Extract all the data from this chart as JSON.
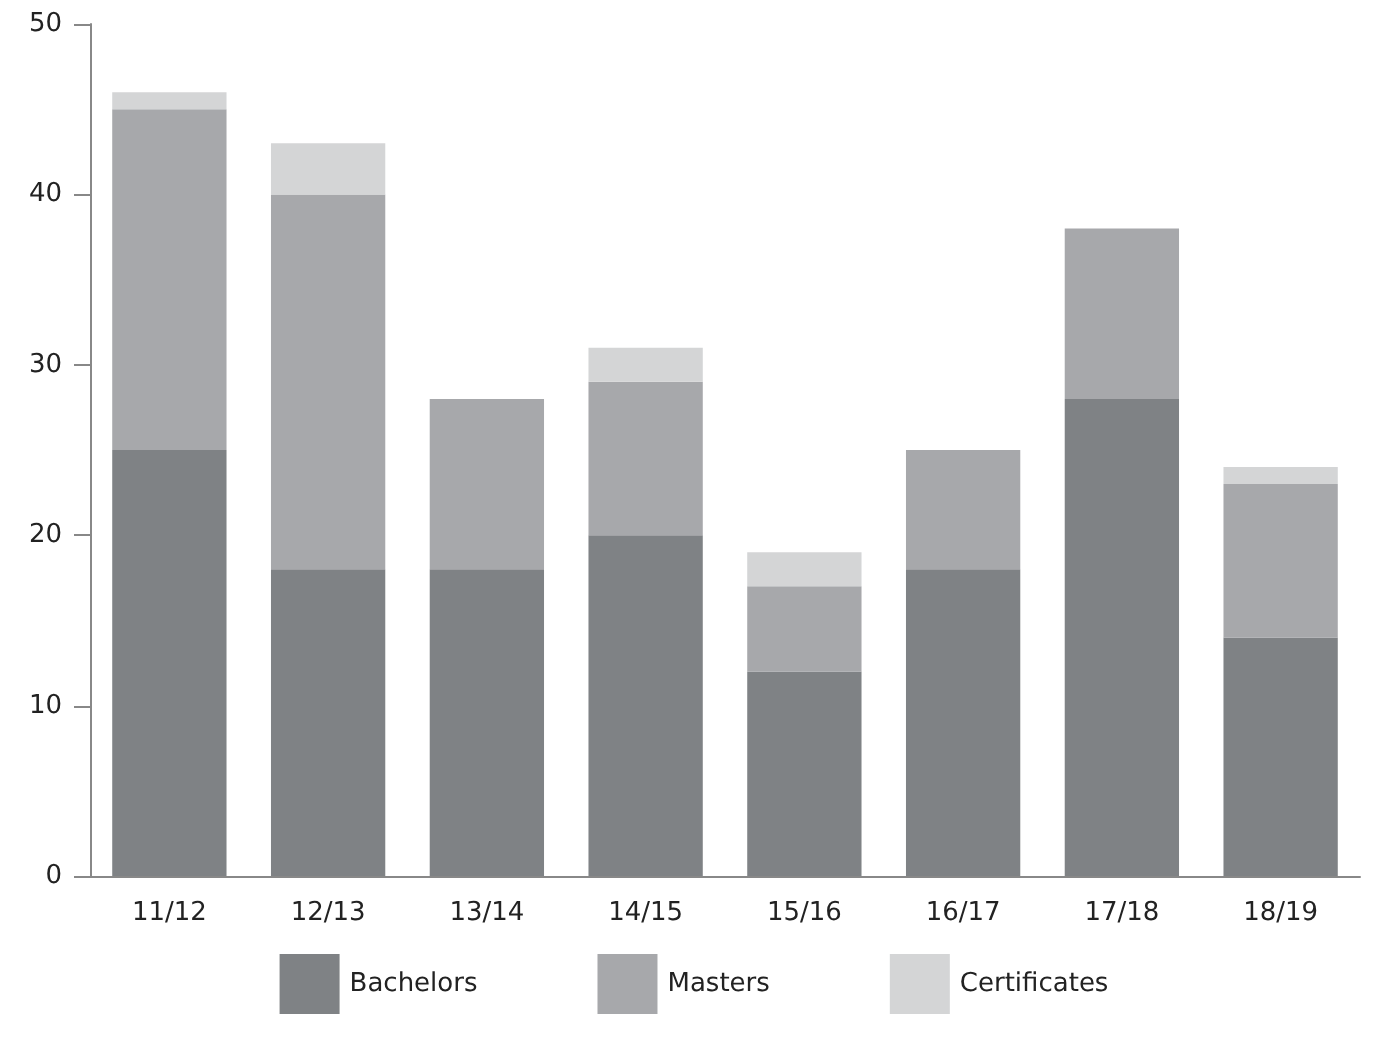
{
  "chart_data": {
    "type": "bar",
    "stacked": true,
    "categories": [
      "11/12",
      "12/13",
      "13/14",
      "14/15",
      "15/16",
      "16/17",
      "17/18",
      "18/19"
    ],
    "series": [
      {
        "name": "Bachelors",
        "color": "#7f8285",
        "values": [
          25,
          18,
          18,
          20,
          12,
          18,
          28,
          14
        ]
      },
      {
        "name": "Masters",
        "color": "#a7a8ab",
        "values": [
          20,
          22,
          10,
          9,
          5,
          7,
          10,
          9
        ]
      },
      {
        "name": "Certificates",
        "color": "#d4d5d6",
        "values": [
          1,
          3,
          0,
          2,
          2,
          0,
          0,
          1
        ]
      }
    ],
    "ylim": [
      0,
      50
    ],
    "yticks": [
      0,
      10,
      20,
      30,
      40,
      50
    ],
    "grid": false,
    "legend": "bottom"
  }
}
